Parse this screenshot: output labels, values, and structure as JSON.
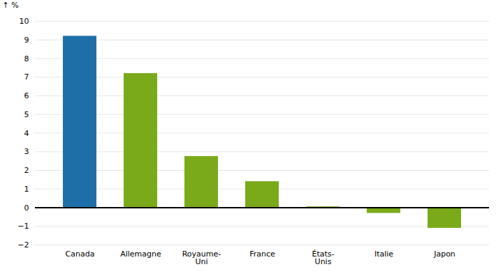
{
  "chart_data": {
    "type": "bar",
    "categories": [
      "Canada",
      "Allemagne",
      "Royaume-\nUni",
      "France",
      "États-\nUnis",
      "Italie",
      "Japon"
    ],
    "values": [
      9.2,
      7.2,
      2.75,
      1.4,
      0.05,
      -0.3,
      -1.1
    ],
    "colors": [
      "#1E6FA8",
      "#7AAA1A",
      "#7AAA1A",
      "#7AAA1A",
      "#7AAA1A",
      "#7AAA1A",
      "#7AAA1A"
    ],
    "ylabel": "%",
    "ylim": [
      -2,
      10
    ],
    "yticks": [
      -2,
      -1,
      0,
      1,
      2,
      3,
      4,
      5,
      6,
      7,
      8,
      9,
      10
    ],
    "grid": true
  }
}
